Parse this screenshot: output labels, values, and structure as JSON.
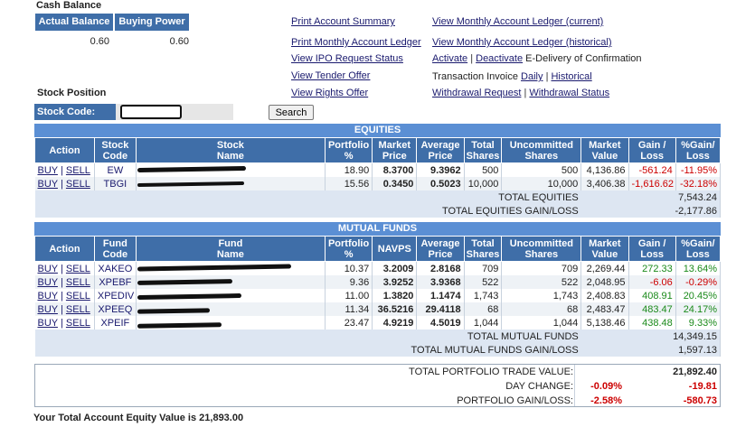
{
  "cash": {
    "title": "Cash Balance",
    "col1": "Actual Balance",
    "col2": "Buying Power",
    "actual_balance": "0.60",
    "buying_power": "0.60"
  },
  "links": {
    "print_summary": "Print Account Summary",
    "print_monthly": "Print Monthly Account Ledger",
    "ipo_status": "View IPO Request Status",
    "tender_offer": "View Tender Offer",
    "rights_offer": "View Rights Offer",
    "monthly_current": "View Monthly Account Ledger (current)",
    "monthly_hist": "View Monthly Account Ledger (historical)",
    "activate": "Activate",
    "deactivate": "Deactivate",
    "edelivery_suffix": "E-Delivery of Confirmation",
    "invoice_prefix": "Transaction Invoice",
    "daily": "Daily",
    "historical": "Historical",
    "withdrawal_request": "Withdrawal Request",
    "withdrawal_status": "Withdrawal Status",
    "pipe": "|"
  },
  "stock_position": {
    "title": "Stock Position",
    "code_label": "Stock Code:",
    "code_value": "",
    "search_label": "Search"
  },
  "equities": {
    "section_title": "EQUITIES",
    "headers": {
      "action": "Action",
      "code1": "Stock",
      "code2": "Code",
      "name1": "Stock",
      "name2": "Name",
      "port1": "Portfolio",
      "port2": "%",
      "mkt1": "Market",
      "mkt2": "Price",
      "avg1": "Average",
      "avg2": "Price",
      "tot1": "Total",
      "tot2": "Shares",
      "unc1": "Uncommitted",
      "unc2": "Shares",
      "mv1": "Market",
      "mv2": "Value",
      "gl1": "Gain /",
      "gl2": "Loss",
      "pgl1": "%Gain/",
      "pgl2": "Loss"
    },
    "rows": [
      {
        "buy": "BUY",
        "sell": "SELL",
        "code": "EW",
        "portfolio": "18.90",
        "price": "8.3700",
        "avg": "9.3962",
        "total": "500",
        "uncommitted": "500",
        "market_value": "4,136.86",
        "gain": "-561.24",
        "pct": "-11.95%"
      },
      {
        "buy": "BUY",
        "sell": "SELL",
        "code": "TBGI",
        "portfolio": "15.56",
        "price": "0.3450",
        "avg": "0.5023",
        "total": "10,000",
        "uncommitted": "10,000",
        "market_value": "3,406.38",
        "gain": "-1,616.62",
        "pct": "-32.18%"
      }
    ],
    "total_label": "TOTAL EQUITIES",
    "total_value": "7,543.24",
    "gl_label": "TOTAL EQUITIES GAIN/LOSS",
    "gl_value": "-2,177.86"
  },
  "funds": {
    "section_title": "MUTUAL FUNDS",
    "headers": {
      "action": "Action",
      "code1": "Fund",
      "code2": "Code",
      "name1": "Fund",
      "name2": "Name",
      "port1": "Portfolio",
      "port2": "%",
      "navps": "NAVPS",
      "avg1": "Average",
      "avg2": "Price",
      "tot1": "Total",
      "tot2": "Shares",
      "unc1": "Uncommitted",
      "unc2": "Shares",
      "mv1": "Market",
      "mv2": "Value",
      "gl1": "Gain /",
      "gl2": "Loss",
      "pgl1": "%Gain/",
      "pgl2": "Loss"
    },
    "rows": [
      {
        "buy": "BUY",
        "sell": "SELL",
        "code": "XAKEO",
        "portfolio": "10.37",
        "navps": "3.2009",
        "avg": "2.8168",
        "total": "709",
        "uncommitted": "709",
        "market_value": "2,269.44",
        "gain": "272.33",
        "pct": "13.64%"
      },
      {
        "buy": "BUY",
        "sell": "SELL",
        "code": "XPEBF",
        "portfolio": "9.36",
        "navps": "3.9252",
        "avg": "3.9368",
        "total": "522",
        "uncommitted": "522",
        "market_value": "2,048.95",
        "gain": "-6.06",
        "pct": "-0.29%"
      },
      {
        "buy": "BUY",
        "sell": "SELL",
        "code": "XPEDIV",
        "portfolio": "11.00",
        "navps": "1.3820",
        "avg": "1.1474",
        "total": "1,743",
        "uncommitted": "1,743",
        "market_value": "2,408.83",
        "gain": "408.91",
        "pct": "20.45%"
      },
      {
        "buy": "BUY",
        "sell": "SELL",
        "code": "XPEEQ",
        "portfolio": "11.34",
        "navps": "36.5216",
        "avg": "29.4118",
        "total": "68",
        "uncommitted": "68",
        "market_value": "2,483.47",
        "gain": "483.47",
        "pct": "24.17%"
      },
      {
        "buy": "BUY",
        "sell": "SELL",
        "code": "XPEIF",
        "portfolio": "23.47",
        "navps": "4.9219",
        "avg": "4.5019",
        "total": "1,044",
        "uncommitted": "1,044",
        "market_value": "5,138.46",
        "gain": "438.48",
        "pct": "9.33%"
      }
    ],
    "total_label": "TOTAL MUTUAL FUNDS",
    "total_value": "14,349.15",
    "gl_label": "TOTAL MUTUAL FUNDS GAIN/LOSS",
    "gl_value": "1,597.13"
  },
  "summary": {
    "trade_label": "TOTAL PORTFOLIO TRADE VALUE:",
    "trade_value": "21,892.40",
    "day_label": "DAY CHANGE:",
    "day_pct": "-0.09%",
    "day_value": "-19.81",
    "gl_label": "PORTFOLIO GAIN/LOSS:",
    "gl_pct": "-2.58%",
    "gl_value": "-580.73"
  },
  "footer": {
    "equity_text": "Your Total Account Equity Value is 21,893.00"
  },
  "colors": {
    "header_blue": "#3f6ea8",
    "section_blue": "#5b8fd4",
    "negative": "#cc0000",
    "positive": "#1a8a1a"
  }
}
